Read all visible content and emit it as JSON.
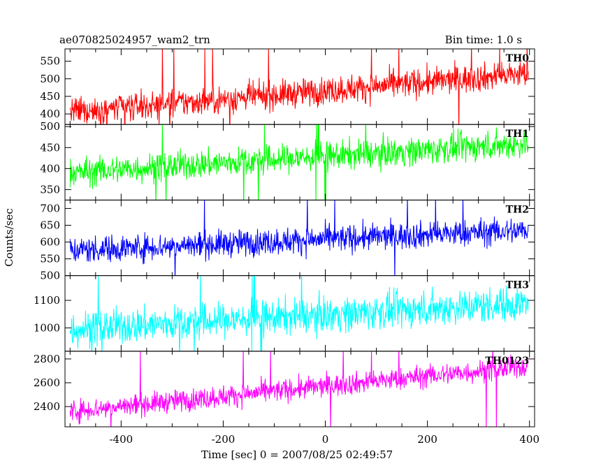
{
  "header": {
    "title": "ae070825024957_wam2_trn",
    "bin_time": "Bin time: 1.0 s"
  },
  "chart_data": {
    "type": "line",
    "xlabel": "Time [sec] 0 = 2007/08/25 02:49:57",
    "ylabel": "Counts/sec",
    "xlim": [
      -510,
      410
    ],
    "x_ticks": [
      -400,
      -200,
      0,
      200,
      400
    ],
    "panels": [
      {
        "name": "TH0",
        "color": "#ff0000",
        "ylim": [
          370,
          585
        ],
        "y_ticks": [
          400,
          450,
          500,
          550
        ],
        "trend_start": 405,
        "trend_end": 515,
        "noise": 28,
        "spike_lo": 320,
        "spike_hi": 600
      },
      {
        "name": "TH1",
        "color": "#00ff00",
        "ylim": [
          325,
          505
        ],
        "y_ticks": [
          350,
          400,
          450,
          500
        ],
        "trend_start": 390,
        "trend_end": 460,
        "noise": 24,
        "spike_lo": 300,
        "spike_hi": 520
      },
      {
        "name": "TH2",
        "color": "#0000ff",
        "ylim": [
          500,
          725
        ],
        "y_ticks": [
          500,
          550,
          600,
          650,
          700
        ],
        "trend_start": 575,
        "trend_end": 635,
        "noise": 28,
        "spike_lo": 480,
        "spike_hi": 740
      },
      {
        "name": "TH3",
        "color": "#00ffff",
        "ylim": [
          915,
          1190
        ],
        "y_ticks": [
          1000,
          1100
        ],
        "trend_start": 995,
        "trend_end": 1090,
        "noise": 45,
        "spike_lo": 880,
        "spike_hi": 1220
      },
      {
        "name": "TH0123",
        "color": "#ff00ff",
        "ylim": [
          2230,
          2865
        ],
        "y_ticks": [
          2400,
          2600,
          2800
        ],
        "trend_start": 2360,
        "trend_end": 2740,
        "noise": 65,
        "spike_lo": 2150,
        "spike_hi": 2900
      }
    ]
  }
}
